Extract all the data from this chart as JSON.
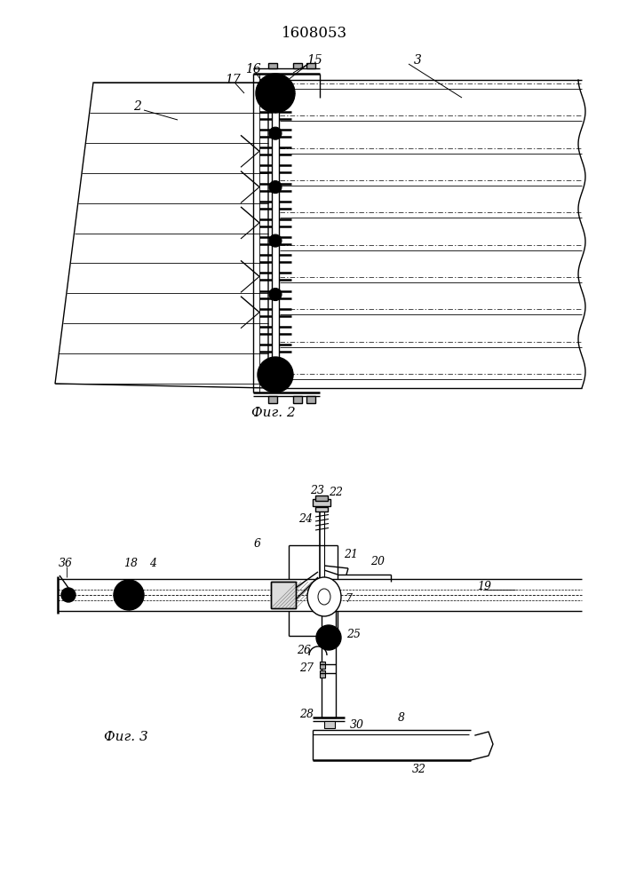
{
  "title": "1608053",
  "fig2_label": "Фиг. 2",
  "fig3_label": "Фиг. 3",
  "bg_color": "#ffffff",
  "line_color": "#000000",
  "lw": 1.0,
  "tlw": 0.6,
  "thk": 1.8
}
